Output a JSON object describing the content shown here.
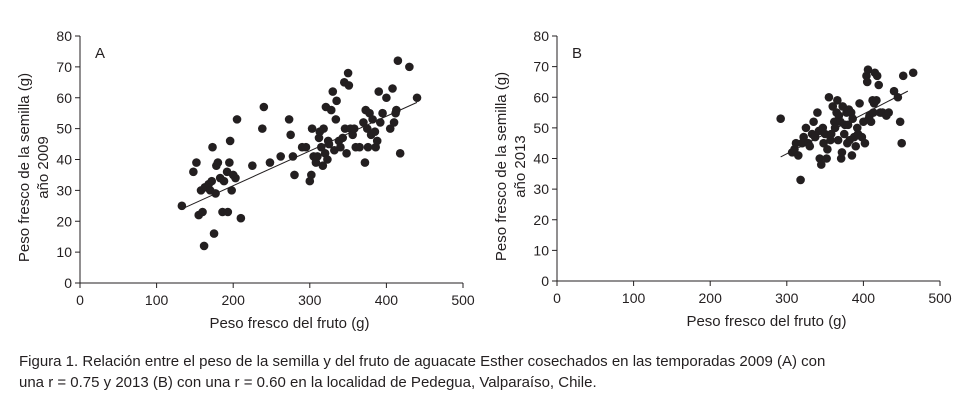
{
  "chart_data": [
    {
      "type": "scatter",
      "label": "A",
      "xlabel": "Peso fresco del fruto (g)",
      "ylabel_lines": [
        "Peso fresco de la semilla (g)",
        "año 2009"
      ],
      "xlim": [
        0,
        500
      ],
      "ylim": [
        0,
        80
      ],
      "xticks": [
        "0",
        "100",
        "200",
        "300",
        "400",
        "500"
      ],
      "yticks": [
        "0",
        "10",
        "20",
        "30",
        "40",
        "50",
        "60",
        "70",
        "80"
      ],
      "grid": false,
      "trendline": {
        "x": [
          133,
          440
        ],
        "y": [
          24,
          58.5
        ]
      },
      "points": [
        [
          133,
          25
        ],
        [
          148,
          36
        ],
        [
          152,
          39
        ],
        [
          155,
          22
        ],
        [
          158,
          30
        ],
        [
          160,
          23
        ],
        [
          162,
          12
        ],
        [
          163,
          31
        ],
        [
          165,
          31
        ],
        [
          168,
          32
        ],
        [
          170,
          30
        ],
        [
          172,
          33
        ],
        [
          173,
          44
        ],
        [
          175,
          16
        ],
        [
          177,
          29
        ],
        [
          178,
          38
        ],
        [
          180,
          39
        ],
        [
          183,
          34
        ],
        [
          186,
          23
        ],
        [
          188,
          33
        ],
        [
          192,
          36
        ],
        [
          193,
          23
        ],
        [
          195,
          39
        ],
        [
          196,
          46
        ],
        [
          198,
          30
        ],
        [
          200,
          35
        ],
        [
          203,
          34
        ],
        [
          205,
          53
        ],
        [
          210,
          21
        ],
        [
          225,
          38
        ],
        [
          238,
          50
        ],
        [
          240,
          57
        ],
        [
          248,
          39
        ],
        [
          262,
          41
        ],
        [
          273,
          53
        ],
        [
          275,
          48
        ],
        [
          278,
          41
        ],
        [
          280,
          35
        ],
        [
          290,
          44
        ],
        [
          295,
          44
        ],
        [
          300,
          33
        ],
        [
          302,
          35
        ],
        [
          303,
          50
        ],
        [
          305,
          41
        ],
        [
          308,
          39
        ],
        [
          310,
          41
        ],
        [
          312,
          47
        ],
        [
          313,
          49
        ],
        [
          315,
          44
        ],
        [
          317,
          38
        ],
        [
          318,
          50
        ],
        [
          320,
          42
        ],
        [
          321,
          57
        ],
        [
          323,
          40
        ],
        [
          324,
          46
        ],
        [
          325,
          45
        ],
        [
          328,
          56
        ],
        [
          330,
          62
        ],
        [
          332,
          43
        ],
        [
          334,
          53
        ],
        [
          335,
          59
        ],
        [
          338,
          46
        ],
        [
          340,
          44
        ],
        [
          343,
          47
        ],
        [
          345,
          65
        ],
        [
          346,
          50
        ],
        [
          348,
          42
        ],
        [
          350,
          68
        ],
        [
          351,
          64
        ],
        [
          353,
          50
        ],
        [
          356,
          48
        ],
        [
          358,
          50
        ],
        [
          360,
          44
        ],
        [
          365,
          44
        ],
        [
          370,
          52
        ],
        [
          372,
          39
        ],
        [
          373,
          56
        ],
        [
          375,
          50
        ],
        [
          376,
          44
        ],
        [
          378,
          55
        ],
        [
          380,
          48
        ],
        [
          382,
          53
        ],
        [
          385,
          49
        ],
        [
          386,
          44
        ],
        [
          388,
          46
        ],
        [
          390,
          62
        ],
        [
          392,
          52
        ],
        [
          395,
          55
        ],
        [
          400,
          60
        ],
        [
          405,
          50
        ],
        [
          408,
          63
        ],
        [
          410,
          52
        ],
        [
          412,
          55
        ],
        [
          413,
          56
        ],
        [
          415,
          72
        ],
        [
          418,
          42
        ],
        [
          430,
          70
        ],
        [
          440,
          60
        ]
      ]
    },
    {
      "type": "scatter",
      "label": "B",
      "xlabel": "Peso fresco del fruto (g)",
      "ylabel_lines": [
        "Peso fresco de la semilla (g)",
        "año 2013"
      ],
      "xlim": [
        0,
        500
      ],
      "ylim": [
        0,
        80
      ],
      "xticks": [
        "0",
        "100",
        "200",
        "300",
        "400",
        "500"
      ],
      "yticks": [
        "0",
        "10",
        "20",
        "30",
        "40",
        "50",
        "60",
        "70",
        "80"
      ],
      "grid": false,
      "trendline": {
        "x": [
          292,
          458
        ],
        "y": [
          40.5,
          62
        ]
      },
      "points": [
        [
          292,
          53
        ],
        [
          307,
          42
        ],
        [
          310,
          43
        ],
        [
          312,
          45
        ],
        [
          315,
          41
        ],
        [
          318,
          33
        ],
        [
          320,
          45
        ],
        [
          322,
          47
        ],
        [
          325,
          50
        ],
        [
          328,
          45
        ],
        [
          330,
          44
        ],
        [
          333,
          48
        ],
        [
          335,
          52
        ],
        [
          337,
          47
        ],
        [
          340,
          55
        ],
        [
          342,
          49
        ],
        [
          343,
          40
        ],
        [
          345,
          38
        ],
        [
          347,
          50
        ],
        [
          348,
          45
        ],
        [
          350,
          48
        ],
        [
          352,
          40
        ],
        [
          353,
          43
        ],
        [
          355,
          60
        ],
        [
          357,
          46
        ],
        [
          358,
          48
        ],
        [
          360,
          57
        ],
        [
          362,
          52
        ],
        [
          363,
          50
        ],
        [
          365,
          55
        ],
        [
          366,
          59
        ],
        [
          367,
          46
        ],
        [
          368,
          54
        ],
        [
          370,
          52
        ],
        [
          371,
          40
        ],
        [
          372,
          42
        ],
        [
          373,
          57
        ],
        [
          375,
          48
        ],
        [
          376,
          51
        ],
        [
          378,
          55
        ],
        [
          379,
          45
        ],
        [
          380,
          51
        ],
        [
          381,
          56
        ],
        [
          382,
          46
        ],
        [
          384,
          55
        ],
        [
          385,
          41
        ],
        [
          386,
          53
        ],
        [
          388,
          47
        ],
        [
          390,
          44
        ],
        [
          392,
          50
        ],
        [
          393,
          48
        ],
        [
          395,
          58
        ],
        [
          398,
          47
        ],
        [
          400,
          52
        ],
        [
          402,
          45
        ],
        [
          404,
          67
        ],
        [
          405,
          65
        ],
        [
          406,
          69
        ],
        [
          407,
          53
        ],
        [
          408,
          54
        ],
        [
          410,
          52
        ],
        [
          412,
          59
        ],
        [
          413,
          55
        ],
        [
          414,
          58
        ],
        [
          415,
          68
        ],
        [
          417,
          59
        ],
        [
          418,
          67
        ],
        [
          420,
          64
        ],
        [
          422,
          55
        ],
        [
          425,
          55
        ],
        [
          430,
          54
        ],
        [
          433,
          55
        ],
        [
          440,
          62
        ],
        [
          445,
          60
        ],
        [
          448,
          52
        ],
        [
          450,
          45
        ],
        [
          452,
          67
        ],
        [
          465,
          68
        ]
      ]
    }
  ],
  "caption": {
    "line1": "Figura 1. Relación entre el peso de la semilla y del fruto de aguacate Esther cosechados en las temporadas 2009 (A) con",
    "line2": "una r = 0.75 y 2013 (B) con una r = 0.60 en la localidad de Pedegua, Valparaíso, Chile."
  }
}
